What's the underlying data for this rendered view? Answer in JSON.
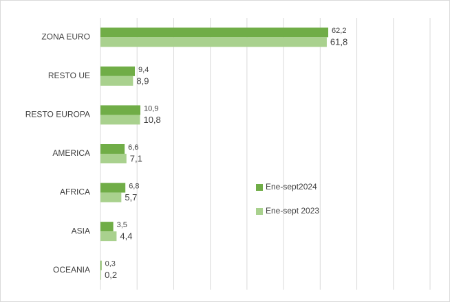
{
  "chart_data": {
    "type": "hbar",
    "categories": [
      "ZONA EURO",
      "RESTO UE",
      "RESTO EUROPA",
      "AMERICA",
      "AFRICA",
      "ASIA",
      "OCEANIA"
    ],
    "series": [
      {
        "name": "Ene-sept2024",
        "color": "#70ad47",
        "values": [
          62.2,
          9.4,
          10.9,
          6.6,
          6.8,
          3.5,
          0.3
        ],
        "value_labels": [
          "62,2",
          "9,4",
          "10,9",
          "6,6",
          "6,8",
          "3,5",
          "0,3"
        ]
      },
      {
        "name": "Ene-sept 2023",
        "color": "#a9d18e",
        "values": [
          61.8,
          8.9,
          10.8,
          7.1,
          5.7,
          4.4,
          0.2
        ],
        "value_labels": [
          "61,8",
          "8,9",
          "10,8",
          "7,1",
          "5,7",
          "4,4",
          "0,2"
        ]
      }
    ],
    "xlim": [
      0,
      90
    ],
    "xticks": [
      0,
      10,
      20,
      30,
      40,
      50,
      60,
      70,
      80,
      90
    ],
    "grid": true,
    "legend": "right"
  }
}
